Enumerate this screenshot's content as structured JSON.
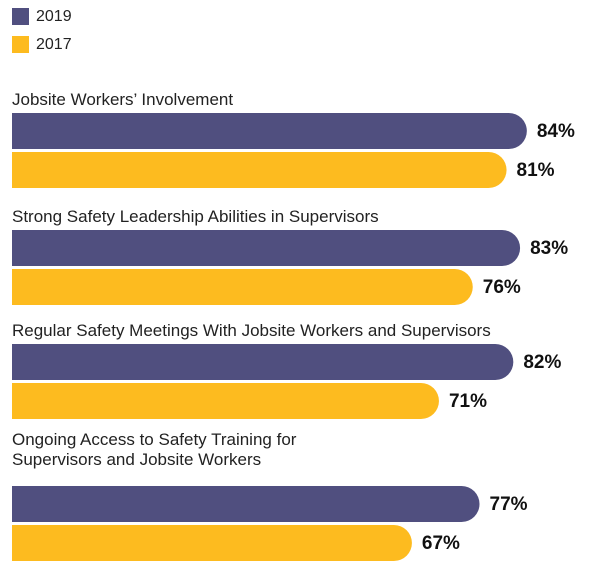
{
  "chart_data": {
    "type": "bar",
    "orientation": "horizontal",
    "categories": [
      "Jobsite Workers’ Involvement",
      "Strong Safety Leadership Abilities in Supervisors",
      "Regular Safety Meetings With Jobsite Workers and Supervisors",
      "Ongoing Access to Safety Training for\nSupervisors and Jobsite Workers"
    ],
    "series": [
      {
        "name": "2019",
        "color": "#504f7f",
        "values": [
          84,
          83,
          82,
          77
        ],
        "value_labels": [
          "84%",
          "83%",
          "82%",
          "77%"
        ]
      },
      {
        "name": "2017",
        "color": "#fdbb1f",
        "values": [
          81,
          76,
          71,
          67
        ],
        "value_labels": [
          "81%",
          "76%",
          "71%",
          "67%"
        ]
      }
    ]
  }
}
